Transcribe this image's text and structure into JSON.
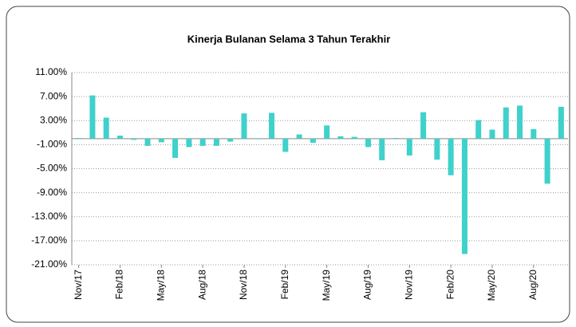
{
  "chart_data": {
    "type": "bar",
    "title": "Kinerja Bulanan Selama 3 Tahun Terakhir",
    "categories": [
      "Nov/17",
      null,
      null,
      "Feb/18",
      null,
      null,
      "May/18",
      null,
      null,
      "Aug/18",
      null,
      null,
      "Nov/18",
      null,
      null,
      "Feb/19",
      null,
      null,
      "May/19",
      null,
      null,
      "Aug/19",
      null,
      null,
      "Nov/19",
      null,
      null,
      "Feb/20",
      null,
      null,
      "May/20",
      null,
      null,
      "Aug/20",
      null,
      null
    ],
    "values": [
      0.1,
      7.2,
      3.5,
      0.5,
      -0.2,
      -1.2,
      -0.6,
      -3.2,
      -1.4,
      -1.2,
      -1.2,
      -0.5,
      4.2,
      -0.1,
      4.3,
      -2.2,
      0.7,
      -0.7,
      2.2,
      0.4,
      0.3,
      -1.4,
      -3.6,
      0.1,
      -2.8,
      4.4,
      -3.5,
      -6.1,
      -19.2,
      3.1,
      1.5,
      5.2,
      5.5,
      1.6,
      -7.5,
      5.3
    ],
    "color": "#3fd1cb",
    "ylim": [
      -21,
      11
    ],
    "yticks": [
      {
        "value": -21,
        "label": "-21.00%"
      },
      {
        "value": -17,
        "label": "-17.00%"
      },
      {
        "value": -13,
        "label": "-13.00%"
      },
      {
        "value": -9,
        "label": "-9.00%"
      },
      {
        "value": -5,
        "label": "-5.00%"
      },
      {
        "value": -1,
        "label": "-1.00%"
      },
      {
        "value": 3,
        "label": "3.00%"
      },
      {
        "value": 7,
        "label": "7.00%"
      },
      {
        "value": 11,
        "label": "11.00%"
      }
    ],
    "grid": true
  }
}
